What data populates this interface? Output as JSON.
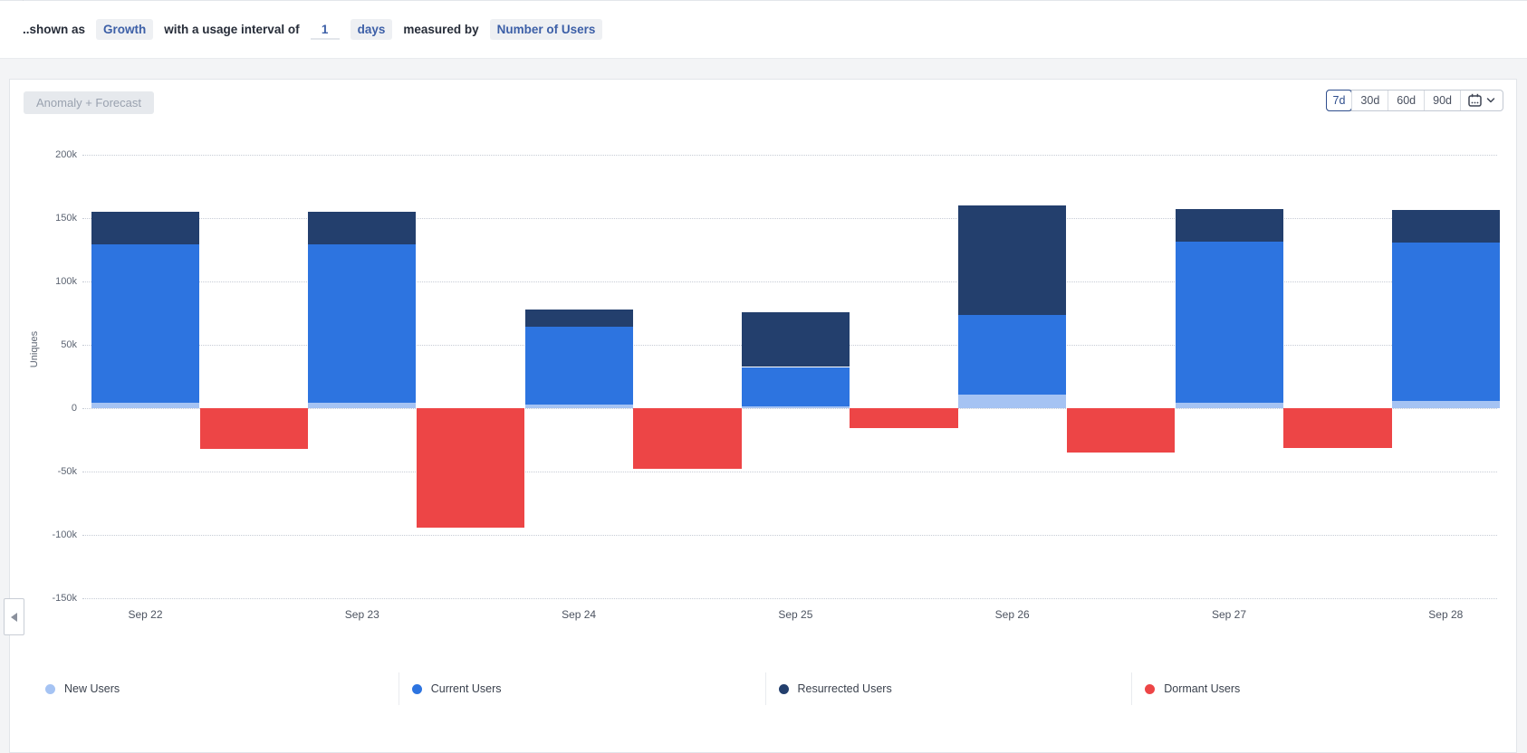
{
  "filter_bar": {
    "prefix": "..shown as",
    "metric": "Growth",
    "interval_label": "with a usage interval of",
    "interval_value": "1",
    "interval_unit": "days",
    "measured_by_label": "measured by",
    "measured_by": "Number of Users"
  },
  "toolbar": {
    "anomaly_button": "Anomaly + Forecast",
    "ranges": [
      "7d",
      "30d",
      "60d",
      "90d"
    ],
    "selected_range": "7d",
    "calendar_icon": "calendar-with-chevron"
  },
  "chart_data": {
    "type": "bar",
    "stacked": true,
    "ylabel": "Uniques",
    "categories": [
      "Sep 22",
      "Sep 23",
      "Sep 24",
      "Sep 25",
      "Sep 26",
      "Sep 27",
      "Sep 28"
    ],
    "y_ticks": [
      "200k",
      "150k",
      "100k",
      "50k",
      "0",
      "-50k",
      "-100k",
      "-150k"
    ],
    "ylim": [
      -150000,
      200000
    ],
    "grid": "dotted-horizontal",
    "legend_position": "bottom",
    "series": [
      {
        "name": "New Users",
        "color": "#a5c3f3",
        "values": [
          4500,
          4500,
          3000,
          1500,
          10500,
          4500,
          5500
        ]
      },
      {
        "name": "Current Users",
        "color": "#2d74e0",
        "values": [
          125000,
          125000,
          61000,
          31000,
          63000,
          127000,
          125500
        ]
      },
      {
        "name": "Resurrected Users",
        "color": "#233f6d",
        "values": [
          25500,
          25500,
          14000,
          43000,
          86500,
          25500,
          25500
        ]
      },
      {
        "name": "Dormant Users",
        "color": "#ed4546",
        "values": [
          -32000,
          -94000,
          -48000,
          -15500,
          -35000,
          -31500,
          null
        ]
      }
    ]
  }
}
